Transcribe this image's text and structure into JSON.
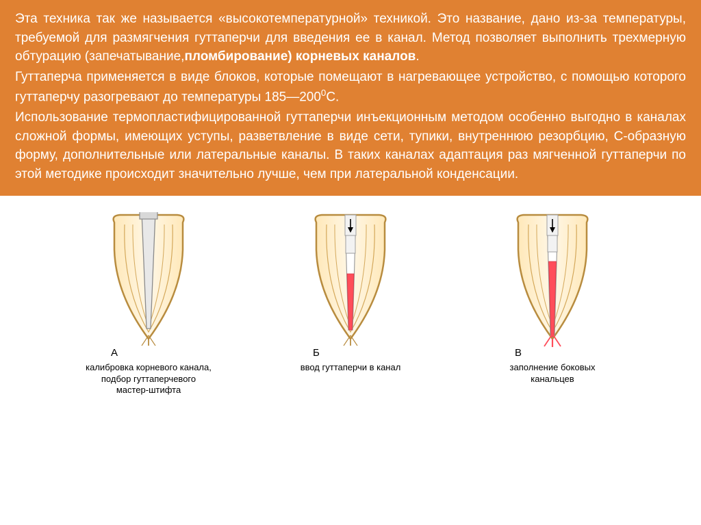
{
  "text": {
    "p1_a": "Эта техника так же называется «высокотемпературной» техникой. Это название, дано из-за температуры, требуемой для размягчения гуттаперчи для введения ее в канал. Метод позволяет выполнить трехмерную обтурацию (запечатывание,",
    "p1_bold": "пломбирование) корневых каналов",
    "p1_end": ".",
    "p2_a": "Гуттаперча применяется в виде блоков, которые помещают в нагревающее устройство, с помощью которого гуттаперчу разогревают до температуры 185—200",
    "p2_sup": "0",
    "p2_end": "С.",
    "p3": "Использование термопластифицированной гуттаперчи инъекционным методом особенно выгодно в каналах сложной формы, имеющих уступы, разветвление в виде сети, тупики, внутреннюю резорбцию, С-образную форму, дополнительные или латеральные каналы. В таких каналах адаптация раз мягченной гуттаперчи по этой методике происходит значительно лучше, чем при латеральной конденсации."
  },
  "diagrams": {
    "colors": {
      "outline": "#b88c3f",
      "outline_dark": "#7a5a2a",
      "dentin_fill": "#fff7e6",
      "dentin_grad": "#ffe8b8",
      "canal_wall": "#9e9e9e",
      "tool_fill": "#e8e8e8",
      "tool_stroke": "#8a8a8a",
      "gutta_fill": "#ff4d5a",
      "gutta_light": "#ffb0b7",
      "apex_stroke": "#b88c3f"
    },
    "items": [
      {
        "letter": "А",
        "caption": "калибровка корневого канала,\nподбор гуттаперчевого\nмастер-штифта"
      },
      {
        "letter": "Б",
        "caption": "ввод гуттаперчи в канал"
      },
      {
        "letter": "В",
        "caption": "заполнение боковых\nканальцев"
      }
    ]
  }
}
